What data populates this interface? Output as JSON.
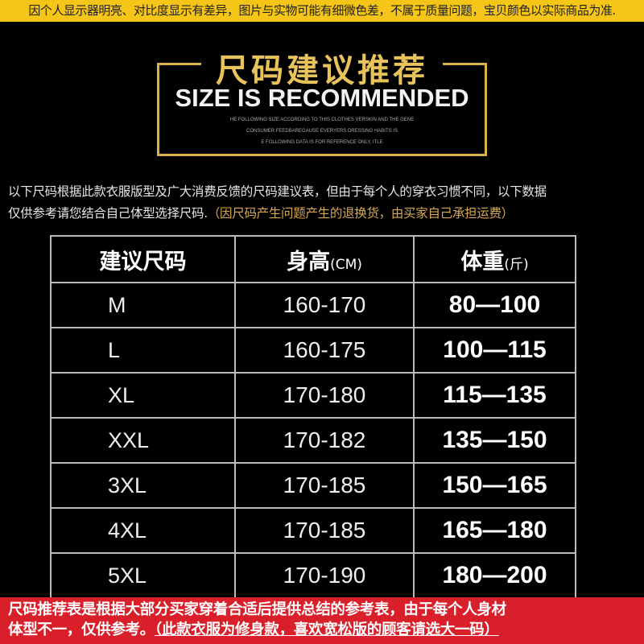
{
  "top_notice": "因个人显示器明亮、对比度显示有差异，图片与实物可能有细微色差，不属于质量问题，宝贝颜色以实际商品为准.",
  "header": {
    "title_cn": "尺码建议推荐",
    "title_en": "SIZE IS RECOMMENDED",
    "subtitle_lines": [
      "HE FOLLOWING SIZE ACCORDING TO THIS CLOTHES VERSKIN AND THE GENE",
      "CONSUMER FEEDBAREGAUSE EVERYERS DRESSING HABITS IS",
      "E FOLLOWING DATA IS FOR REFERENCE ONLY, ITLE"
    ]
  },
  "intro": {
    "line1": "以下尺码根据此款衣服版型及广大消费反馈的尺码建议表，但由于每个人的穿衣习惯不同，以下数据",
    "line2_plain": "仅供参考请您结合自己体型选择尺码.",
    "line2_highlight": "（因尺码产生问题产生的退换货，由买家自己承担运费）"
  },
  "table": {
    "headers": [
      {
        "main": "建议尺码",
        "unit": ""
      },
      {
        "main": "身高",
        "unit": "(CM)"
      },
      {
        "main": "体重",
        "unit": "(斤)"
      }
    ],
    "rows": [
      {
        "size": "M",
        "height": "160-170",
        "weight": "80—100"
      },
      {
        "size": "L",
        "height": "160-175",
        "weight": "100—115"
      },
      {
        "size": "XL",
        "height": "170-180",
        "weight": "115—135"
      },
      {
        "size": "XXL",
        "height": "170-182",
        "weight": "135—150"
      },
      {
        "size": "3XL",
        "height": "170-185",
        "weight": "150—165"
      },
      {
        "size": "4XL",
        "height": "170-185",
        "weight": "165—180"
      },
      {
        "size": "5XL",
        "height": "170-190",
        "weight": "180—200"
      }
    ]
  },
  "bottom_notice": {
    "line1": "尺码推荐表是根据大部分买家穿着合适后提供总结的参考表，由于每个人身材",
    "line2_plain": "体型不一，仅供参考。",
    "line2_underlined": "（此款衣服为修身款，喜欢宽松版的顾客请选大一码）"
  },
  "colors": {
    "top_bar": "#f5c518",
    "gold": "#e8c25a",
    "bottom_bar": "#d9202a",
    "highlight": "#d8a850"
  }
}
